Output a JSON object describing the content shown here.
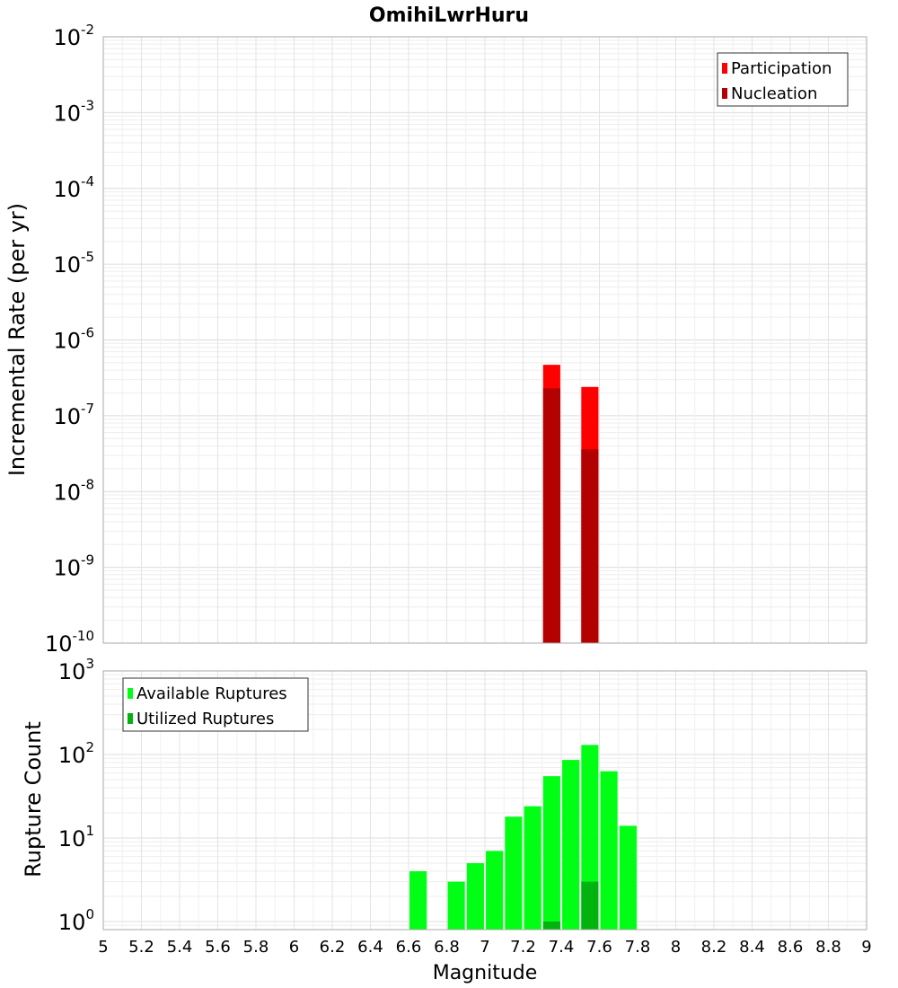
{
  "chart_data": [
    {
      "type": "bar",
      "title": "OmihiLwrHuru",
      "ylabel": "Incremental Rate (per yr)",
      "yscale": "log",
      "ylim": [
        1e-10,
        0.01
      ],
      "xlim": [
        5,
        9
      ],
      "grid": true,
      "legend_position": "top-right",
      "y_ticks": [
        {
          "base": "10",
          "exp": "-10"
        },
        {
          "base": "10",
          "exp": "-9"
        },
        {
          "base": "10",
          "exp": "-8"
        },
        {
          "base": "10",
          "exp": "-7"
        },
        {
          "base": "10",
          "exp": "-6"
        },
        {
          "base": "10",
          "exp": "-5"
        },
        {
          "base": "10",
          "exp": "-4"
        },
        {
          "base": "10",
          "exp": "-3"
        },
        {
          "base": "10",
          "exp": "-2"
        }
      ],
      "series": [
        {
          "name": "Participation",
          "color": "#ff0000",
          "points": [
            {
              "x": 7.35,
              "y": 4.7e-07
            },
            {
              "x": 7.55,
              "y": 2.4e-07
            }
          ]
        },
        {
          "name": "Nucleation",
          "color": "#b30000",
          "points": [
            {
              "x": 7.35,
              "y": 2.3e-07
            },
            {
              "x": 7.55,
              "y": 3.6e-08
            }
          ]
        }
      ]
    },
    {
      "type": "bar",
      "ylabel": "Rupture Count",
      "xlabel": "Magnitude",
      "yscale": "log",
      "ylim": [
        0.8,
        1000
      ],
      "xlim": [
        5,
        9
      ],
      "grid": true,
      "legend_position": "top-left",
      "x_ticks": [
        "5",
        "5.2",
        "5.4",
        "5.6",
        "5.8",
        "6",
        "6.2",
        "6.4",
        "6.6",
        "6.8",
        "7",
        "7.2",
        "7.4",
        "7.6",
        "7.8",
        "8",
        "8.2",
        "8.4",
        "8.6",
        "8.8",
        "9"
      ],
      "y_ticks": [
        {
          "base": "10",
          "exp": "0"
        },
        {
          "base": "10",
          "exp": "1"
        },
        {
          "base": "10",
          "exp": "2"
        },
        {
          "base": "10",
          "exp": "3"
        }
      ],
      "series": [
        {
          "name": "Available Ruptures",
          "color": "#00ff14",
          "points": [
            {
              "x": 6.65,
              "y": 4
            },
            {
              "x": 6.85,
              "y": 3
            },
            {
              "x": 6.95,
              "y": 5
            },
            {
              "x": 7.05,
              "y": 7
            },
            {
              "x": 7.15,
              "y": 18
            },
            {
              "x": 7.25,
              "y": 24
            },
            {
              "x": 7.35,
              "y": 55
            },
            {
              "x": 7.45,
              "y": 86
            },
            {
              "x": 7.55,
              "y": 130
            },
            {
              "x": 7.65,
              "y": 63
            },
            {
              "x": 7.75,
              "y": 14
            }
          ]
        },
        {
          "name": "Utilized Ruptures",
          "color": "#00b30f",
          "points": [
            {
              "x": 7.35,
              "y": 1
            },
            {
              "x": 7.55,
              "y": 3
            }
          ]
        }
      ]
    }
  ]
}
